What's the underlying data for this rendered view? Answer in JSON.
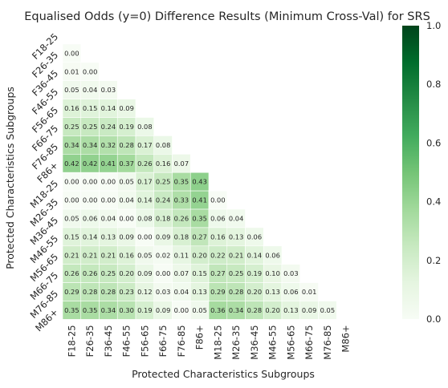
{
  "chart_data": {
    "type": "heatmap",
    "title": "Equalised Odds (y=0)  Difference Results (Minimum Cross-Val) for SRS",
    "xlabel": "Protected Characteristics Subgroups",
    "ylabel": "Protected Characteristics Subgroups",
    "categories": [
      "F18-25",
      "F26-35",
      "F36-45",
      "F46-55",
      "F56-65",
      "F66-75",
      "F76-85",
      "F86+",
      "M18-25",
      "M26-35",
      "M36-45",
      "M46-55",
      "M56-65",
      "M66-75",
      "M76-85",
      "M86+"
    ],
    "matrix": [
      [],
      [
        "0.00"
      ],
      [
        "0.01",
        "0.00"
      ],
      [
        "0.05",
        "0.04",
        "0.03"
      ],
      [
        "0.16",
        "0.15",
        "0.14",
        "0.09"
      ],
      [
        "0.25",
        "0.25",
        "0.24",
        "0.19",
        "0.08"
      ],
      [
        "0.34",
        "0.34",
        "0.32",
        "0.28",
        "0.17",
        "0.08"
      ],
      [
        "0.42",
        "0.42",
        "0.41",
        "0.37",
        "0.26",
        "0.16",
        "0.07"
      ],
      [
        "0.00",
        "0.00",
        "0.00",
        "0.05",
        "0.17",
        "0.25",
        "0.35",
        "0.43"
      ],
      [
        "0.00",
        "0.00",
        "0.00",
        "0.04",
        "0.14",
        "0.24",
        "0.33",
        "0.41",
        "0.00"
      ],
      [
        "0.05",
        "0.06",
        "0.04",
        "0.00",
        "0.08",
        "0.18",
        "0.26",
        "0.35",
        "0.06",
        "0.04"
      ],
      [
        "0.15",
        "0.14",
        "0.13",
        "0.09",
        "0.00",
        "0.09",
        "0.18",
        "0.27",
        "0.16",
        "0.13",
        "0.06"
      ],
      [
        "0.21",
        "0.21",
        "0.21",
        "0.16",
        "0.05",
        "0.02",
        "0.11",
        "0.20",
        "0.22",
        "0.21",
        "0.14",
        "0.06"
      ],
      [
        "0.26",
        "0.26",
        "0.25",
        "0.20",
        "0.09",
        "0.00",
        "0.07",
        "0.15",
        "0.27",
        "0.25",
        "0.19",
        "0.10",
        "0.03"
      ],
      [
        "0.29",
        "0.28",
        "0.28",
        "0.23",
        "0.12",
        "0.03",
        "0.04",
        "0.13",
        "0.29",
        "0.28",
        "0.20",
        "0.13",
        "0.06",
        "0.01"
      ],
      [
        "0.35",
        "0.35",
        "0.34",
        "0.30",
        "0.19",
        "0.09",
        "0.00",
        "0.05",
        "0.36",
        "0.34",
        "0.28",
        "0.20",
        "0.13",
        "0.09",
        "0.05"
      ]
    ],
    "vmin": 0,
    "vmax": 1,
    "colorbar_ticks": [
      "0.0",
      "0.2",
      "0.4",
      "0.6",
      "0.8",
      "1.0"
    ],
    "colormap": [
      "#f7fcf5",
      "#e5f5e0",
      "#c7e9c0",
      "#a1d99b",
      "#74c476",
      "#41ab5d",
      "#238b45",
      "#006d2c",
      "#00441b"
    ],
    "mask": "upper-triangle-including-diagonal"
  }
}
